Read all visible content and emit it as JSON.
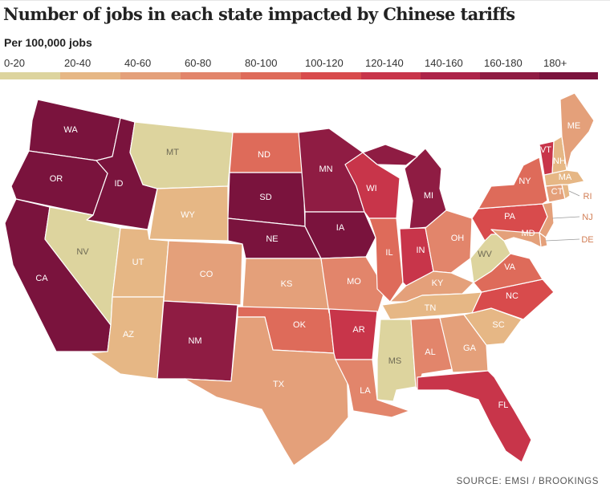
{
  "title": "Number of jobs in each state impacted by Chinese tariffs",
  "subtitle": "Per 100,000 jobs",
  "legend": [
    {
      "label": "0-20",
      "color": "#ddd49e"
    },
    {
      "label": "20-40",
      "color": "#e6b785"
    },
    {
      "label": "40-60",
      "color": "#e4a07a"
    },
    {
      "label": "60-80",
      "color": "#e2856b"
    },
    {
      "label": "80-100",
      "color": "#de6b5a"
    },
    {
      "label": "100-120",
      "color": "#d84b4c"
    },
    {
      "label": "120-140",
      "color": "#c8354a"
    },
    {
      "label": "140-160",
      "color": "#ad2449"
    },
    {
      "label": "160-180",
      "color": "#8f1c43"
    },
    {
      "label": "180+",
      "color": "#7a133d"
    }
  ],
  "states": [
    {
      "abbr": "WA",
      "bin": 9
    },
    {
      "abbr": "OR",
      "bin": 9
    },
    {
      "abbr": "CA",
      "bin": 9
    },
    {
      "abbr": "ID",
      "bin": 9
    },
    {
      "abbr": "NV",
      "bin": 0
    },
    {
      "abbr": "MT",
      "bin": 0
    },
    {
      "abbr": "WY",
      "bin": 1
    },
    {
      "abbr": "UT",
      "bin": 1
    },
    {
      "abbr": "AZ",
      "bin": 1
    },
    {
      "abbr": "CO",
      "bin": 2
    },
    {
      "abbr": "NM",
      "bin": 8
    },
    {
      "abbr": "ND",
      "bin": 4
    },
    {
      "abbr": "SD",
      "bin": 9
    },
    {
      "abbr": "NE",
      "bin": 9
    },
    {
      "abbr": "KS",
      "bin": 2
    },
    {
      "abbr": "OK",
      "bin": 4
    },
    {
      "abbr": "TX",
      "bin": 2
    },
    {
      "abbr": "MN",
      "bin": 8
    },
    {
      "abbr": "IA",
      "bin": 9
    },
    {
      "abbr": "MO",
      "bin": 3
    },
    {
      "abbr": "AR",
      "bin": 6
    },
    {
      "abbr": "LA",
      "bin": 3
    },
    {
      "abbr": "WI",
      "bin": 6
    },
    {
      "abbr": "IL",
      "bin": 4
    },
    {
      "abbr": "MI",
      "bin": 8
    },
    {
      "abbr": "IN",
      "bin": 6
    },
    {
      "abbr": "OH",
      "bin": 3
    },
    {
      "abbr": "KY",
      "bin": 2
    },
    {
      "abbr": "TN",
      "bin": 1
    },
    {
      "abbr": "MS",
      "bin": 0
    },
    {
      "abbr": "AL",
      "bin": 3
    },
    {
      "abbr": "GA",
      "bin": 2
    },
    {
      "abbr": "FL",
      "bin": 6
    },
    {
      "abbr": "SC",
      "bin": 1
    },
    {
      "abbr": "NC",
      "bin": 5
    },
    {
      "abbr": "VA",
      "bin": 4
    },
    {
      "abbr": "WV",
      "bin": 0
    },
    {
      "abbr": "PA",
      "bin": 5
    },
    {
      "abbr": "NY",
      "bin": 4
    },
    {
      "abbr": "NJ",
      "bin": 2
    },
    {
      "abbr": "DE",
      "bin": 2
    },
    {
      "abbr": "MD",
      "bin": 2
    },
    {
      "abbr": "VT",
      "bin": 6
    },
    {
      "abbr": "NH",
      "bin": 1
    },
    {
      "abbr": "ME",
      "bin": 2
    },
    {
      "abbr": "MA",
      "bin": 1
    },
    {
      "abbr": "CT",
      "bin": 2
    },
    {
      "abbr": "RI",
      "bin": 1
    }
  ],
  "source": "SOURCE: EMSI / BROOKINGS"
}
